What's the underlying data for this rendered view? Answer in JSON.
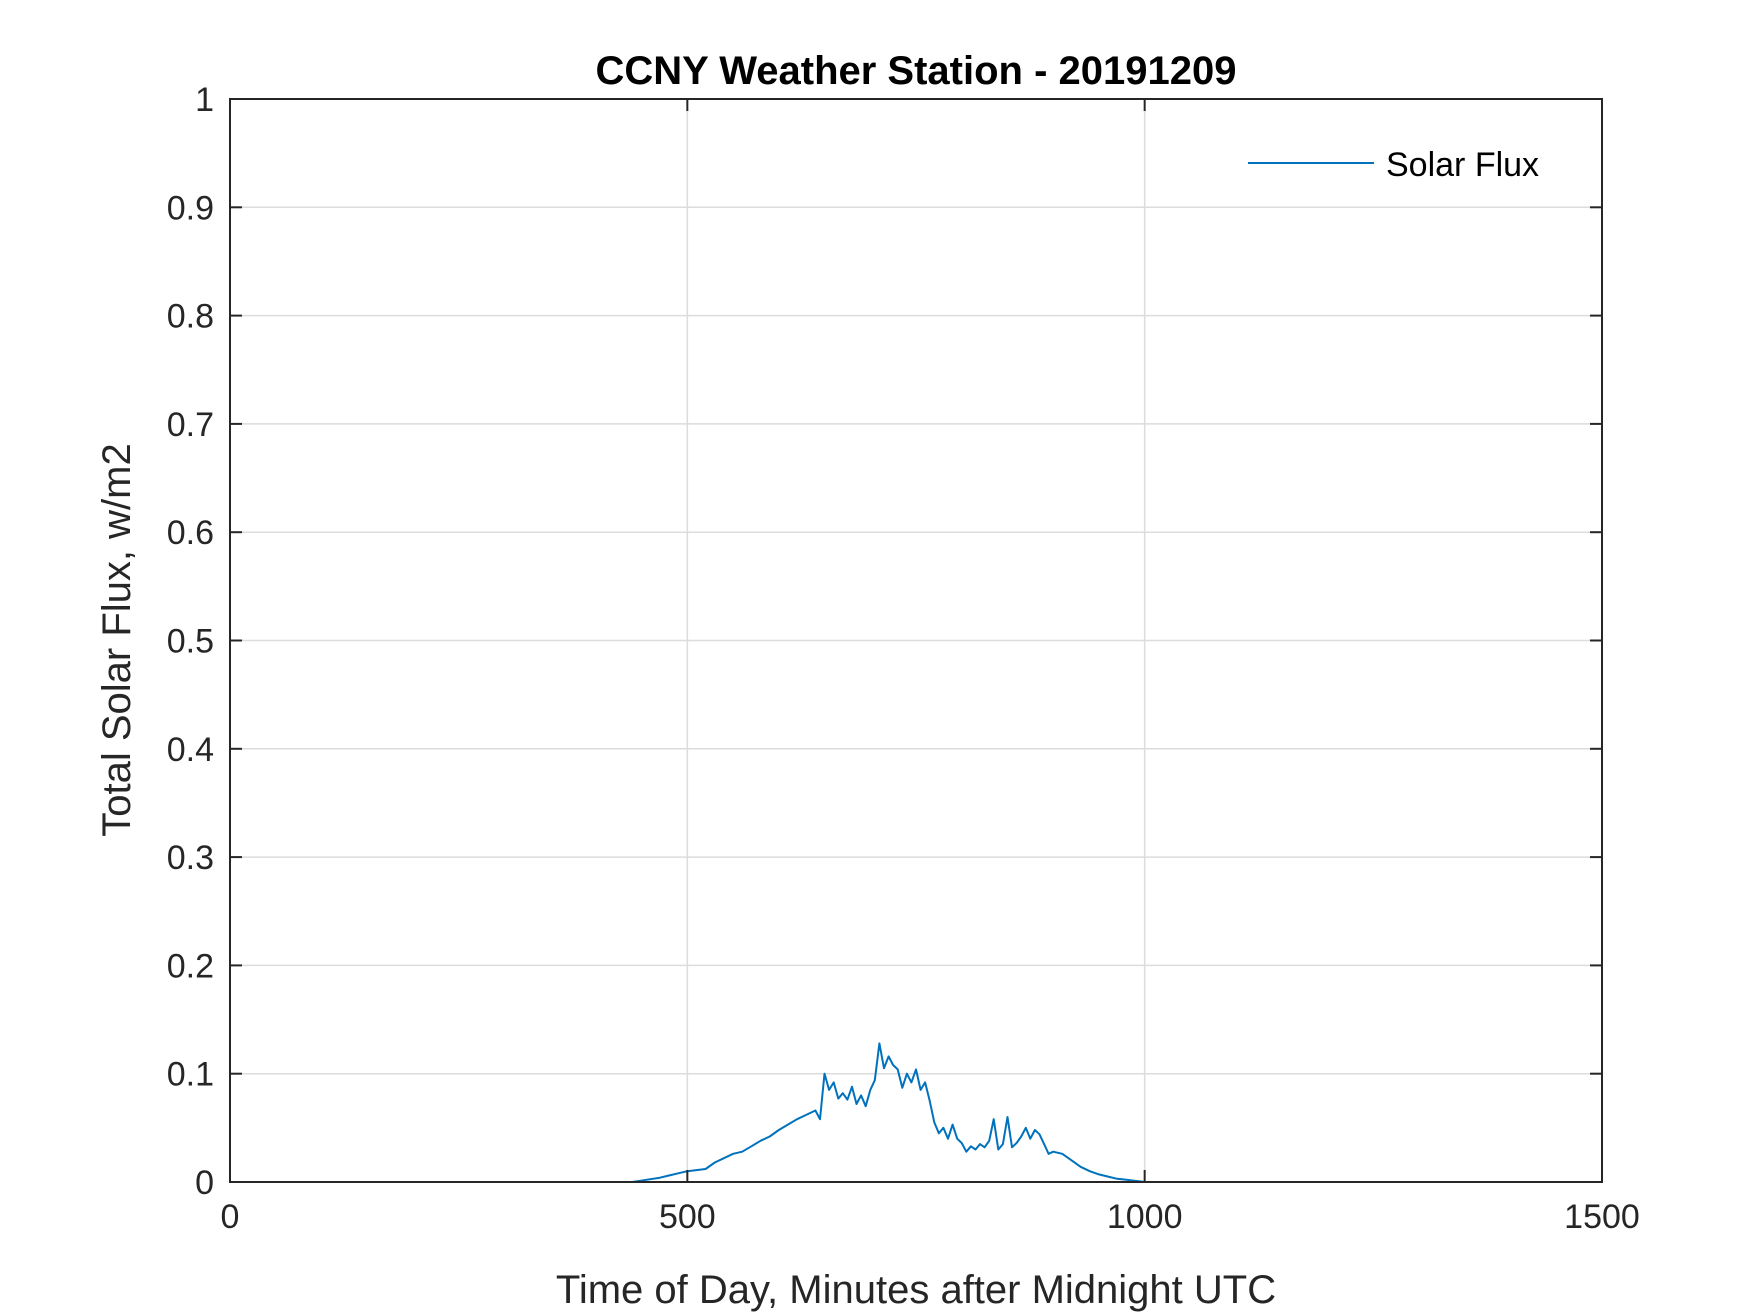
{
  "chart_data": {
    "type": "line",
    "title": "CCNY Weather Station - 20191209",
    "xlabel": "Time of Day, Minutes after Midnight UTC",
    "ylabel": "Total Solar Flux, w/m2",
    "xlim": [
      0,
      1500
    ],
    "ylim": [
      0,
      1
    ],
    "xticks": [
      0,
      500,
      1000,
      1500
    ],
    "xtick_labels": [
      "0",
      "500",
      "1000",
      "1500"
    ],
    "yticks": [
      0,
      0.1,
      0.2,
      0.3,
      0.4,
      0.5,
      0.6,
      0.7,
      0.8,
      0.9,
      1
    ],
    "ytick_labels": [
      "0",
      "0.1",
      "0.2",
      "0.3",
      "0.4",
      "0.5",
      "0.6",
      "0.7",
      "0.8",
      "0.9",
      "1"
    ],
    "grid": true,
    "legend": {
      "position": "top-right",
      "entries": [
        "Solar Flux"
      ]
    },
    "series": [
      {
        "name": "Solar Flux",
        "color": "#0072BD",
        "x": [
          0,
          100,
          200,
          300,
          400,
          440,
          455,
          470,
          480,
          490,
          500,
          510,
          520,
          530,
          540,
          550,
          560,
          570,
          580,
          590,
          600,
          610,
          620,
          630,
          640,
          645,
          650,
          655,
          660,
          665,
          670,
          675,
          680,
          685,
          690,
          695,
          700,
          705,
          710,
          715,
          720,
          725,
          730,
          735,
          740,
          745,
          750,
          755,
          760,
          765,
          770,
          775,
          780,
          785,
          790,
          795,
          800,
          805,
          810,
          815,
          820,
          825,
          830,
          835,
          840,
          845,
          850,
          855,
          860,
          865,
          870,
          875,
          880,
          885,
          890,
          895,
          900,
          910,
          920,
          930,
          940,
          950,
          960,
          970,
          980,
          990,
          1000,
          1010,
          1100,
          1200,
          1300,
          1440
        ],
        "values": [
          0,
          0,
          0,
          0,
          0,
          0,
          0.002,
          0.004,
          0.006,
          0.008,
          0.01,
          0.011,
          0.012,
          0.018,
          0.022,
          0.026,
          0.028,
          0.033,
          0.038,
          0.042,
          0.048,
          0.053,
          0.058,
          0.062,
          0.066,
          0.058,
          0.1,
          0.085,
          0.092,
          0.077,
          0.082,
          0.076,
          0.088,
          0.072,
          0.08,
          0.07,
          0.085,
          0.094,
          0.128,
          0.105,
          0.116,
          0.108,
          0.104,
          0.087,
          0.1,
          0.092,
          0.104,
          0.085,
          0.092,
          0.075,
          0.055,
          0.045,
          0.05,
          0.04,
          0.053,
          0.04,
          0.036,
          0.028,
          0.033,
          0.03,
          0.035,
          0.032,
          0.038,
          0.058,
          0.03,
          0.035,
          0.06,
          0.032,
          0.036,
          0.042,
          0.05,
          0.04,
          0.048,
          0.044,
          0.035,
          0.026,
          0.028,
          0.026,
          0.02,
          0.014,
          0.01,
          0.007,
          0.005,
          0.003,
          0.002,
          0.001,
          0,
          0,
          0,
          0,
          0,
          0
        ]
      }
    ]
  }
}
